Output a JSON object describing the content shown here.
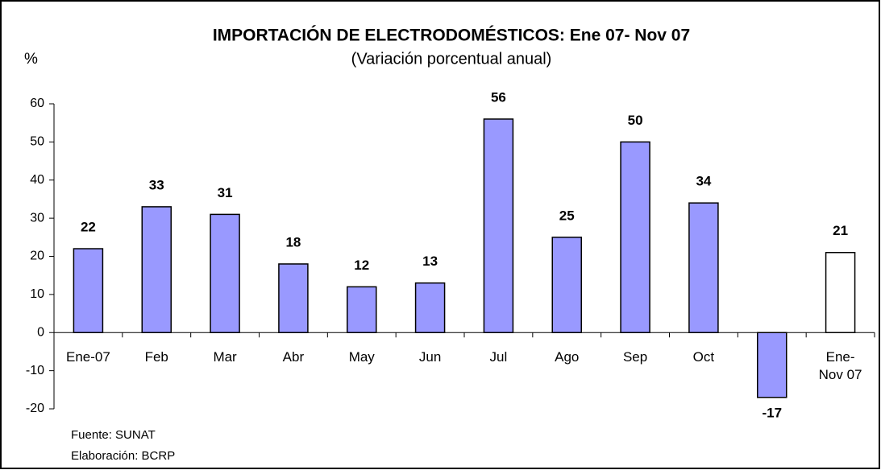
{
  "chart_data": {
    "type": "bar",
    "title": "IMPORTACIÓN DE ELECTRODOMÉSTICOS: Ene 07- Nov 07",
    "subtitle": "(Variación porcentual anual)",
    "y_label": "%",
    "categories": [
      "Ene-07",
      "Feb",
      "Mar",
      "Abr",
      "May",
      "Jun",
      "Jul",
      "Ago",
      "Sep",
      "Oct",
      null,
      "Ene-\nNov 07"
    ],
    "values": [
      22,
      33,
      31,
      18,
      12,
      13,
      56,
      25,
      50,
      34,
      -17,
      21
    ],
    "colors": [
      "#9999ff",
      "#9999ff",
      "#9999ff",
      "#9999ff",
      "#9999ff",
      "#9999ff",
      "#9999ff",
      "#9999ff",
      "#9999ff",
      "#9999ff",
      "#9999ff",
      "#ffffff"
    ],
    "ylim": [
      -20,
      60
    ],
    "yticks": [
      -20,
      -10,
      0,
      10,
      20,
      30,
      40,
      50,
      60
    ],
    "grid": false,
    "notes": [
      "Fuente: SUNAT",
      "Elaboración: BCRP"
    ]
  }
}
